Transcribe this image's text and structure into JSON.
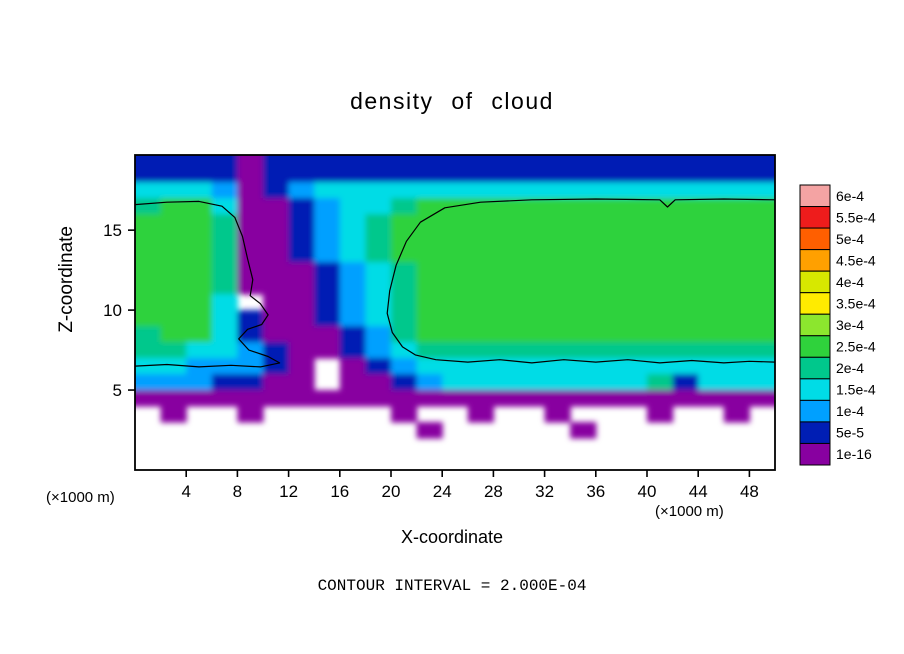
{
  "chart_data": {
    "type": "heatmap",
    "title": "density of cloud",
    "xlabel": "X-coordinate",
    "ylabel": "Z-coordinate",
    "x_unit_left": "(×1000 m)",
    "x_unit_right": "(×1000 m)",
    "contour_note": "CONTOUR INTERVAL = 2.000E-04",
    "contour_level": "2e-4",
    "xlim": [
      0,
      50
    ],
    "ylim": [
      0,
      19.7
    ],
    "x_ticks": [
      4,
      8,
      12,
      16,
      20,
      24,
      28,
      32,
      36,
      40,
      44,
      48
    ],
    "y_ticks": [
      5,
      10,
      15
    ],
    "grid_on": false,
    "legend_position": "right",
    "colorbar": {
      "labels": [
        "6e-4",
        "5.5e-4",
        "5e-4",
        "4.5e-4",
        "4e-4",
        "3.5e-4",
        "3e-4",
        "2.5e-4",
        "2e-4",
        "1.5e-4",
        "1e-4",
        "5e-5",
        "1e-16"
      ],
      "colors": [
        "#f4a3a3",
        "#ee1c1c",
        "#ff5f00",
        "#ffa000",
        "#d7e800",
        "#ffeb00",
        "#8ce62e",
        "#2fd23c",
        "#00c88c",
        "#00dce6",
        "#00a0ff",
        "#001eb4",
        "#8800a0"
      ]
    },
    "grid": {
      "comment": "cloud density field, values in units of 1e-4; 0 = below 1e-16 (white); columns x = 1,3,...,49 (×1000 m); rows top-to-bottom z = 19.5 down to 0.5 (×1000 m)",
      "x0": 1,
      "dx": 2,
      "z_top": 19.5,
      "dz": 1,
      "values": [
        [
          0.7,
          0.7,
          0.7,
          0.7,
          0.2,
          0.7,
          0.7,
          0.7,
          0.7,
          0.7,
          0.7,
          0.7,
          0.7,
          0.7,
          0.7,
          0.7,
          0.7,
          0.7,
          0.7,
          0.7,
          0.7,
          0.7,
          0.7,
          0.7,
          0.7
        ],
        [
          0.7,
          0.7,
          0.7,
          0.7,
          0.2,
          0.7,
          0.7,
          0.7,
          0.7,
          0.7,
          0.7,
          0.7,
          0.7,
          0.7,
          0.7,
          0.7,
          0.7,
          0.7,
          0.7,
          0.7,
          0.7,
          0.7,
          0.7,
          0.7,
          0.7
        ],
        [
          1.7,
          1.7,
          1.7,
          1.2,
          0.2,
          0.7,
          1.2,
          1.7,
          1.7,
          1.7,
          1.7,
          1.7,
          1.7,
          1.7,
          1.7,
          1.7,
          1.7,
          1.7,
          1.7,
          1.7,
          1.7,
          1.7,
          1.7,
          1.7,
          1.7
        ],
        [
          2.2,
          2.7,
          2.7,
          1.7,
          0.2,
          0.2,
          0.7,
          1.2,
          1.7,
          1.7,
          2.2,
          2.7,
          2.7,
          2.7,
          2.7,
          2.7,
          2.7,
          2.7,
          2.7,
          2.7,
          2.7,
          2.7,
          2.7,
          2.7,
          2.7
        ],
        [
          2.7,
          2.7,
          2.7,
          2.2,
          0.2,
          0.2,
          0.7,
          1.2,
          1.7,
          2.2,
          2.7,
          2.7,
          2.7,
          2.7,
          2.7,
          2.7,
          2.7,
          2.7,
          2.7,
          2.7,
          2.7,
          2.7,
          2.7,
          2.7,
          2.7
        ],
        [
          2.7,
          2.7,
          2.7,
          2.2,
          0.2,
          0.2,
          0.7,
          1.2,
          1.7,
          2.2,
          2.7,
          2.7,
          2.7,
          2.7,
          2.7,
          2.7,
          2.7,
          2.7,
          2.7,
          2.7,
          2.7,
          2.7,
          2.7,
          2.7,
          2.7
        ],
        [
          2.7,
          2.7,
          2.7,
          2.2,
          0.2,
          0.2,
          0.7,
          1.2,
          1.7,
          2.2,
          2.7,
          2.7,
          2.7,
          2.7,
          2.7,
          2.7,
          2.7,
          2.7,
          2.7,
          2.7,
          2.7,
          2.7,
          2.7,
          2.7,
          2.7
        ],
        [
          2.7,
          2.7,
          2.7,
          2.2,
          0.2,
          0.2,
          0.2,
          0.7,
          1.2,
          1.7,
          2.2,
          2.7,
          2.7,
          2.7,
          2.7,
          2.7,
          2.7,
          2.7,
          2.7,
          2.7,
          2.7,
          2.7,
          2.7,
          2.7,
          2.7
        ],
        [
          2.7,
          2.7,
          2.7,
          2.2,
          0.2,
          0.2,
          0.2,
          0.7,
          1.2,
          1.7,
          2.2,
          2.7,
          2.7,
          2.7,
          2.7,
          2.7,
          2.7,
          2.7,
          2.7,
          2.7,
          2.7,
          2.7,
          2.7,
          2.7,
          2.7
        ],
        [
          2.7,
          2.7,
          2.7,
          1.7,
          0.0,
          0.2,
          0.2,
          0.7,
          1.2,
          1.7,
          2.2,
          2.7,
          2.7,
          2.7,
          2.7,
          2.7,
          2.7,
          2.7,
          2.7,
          2.7,
          2.7,
          2.7,
          2.7,
          2.7,
          2.7
        ],
        [
          2.7,
          2.7,
          2.7,
          1.7,
          0.7,
          0.2,
          0.2,
          0.7,
          1.2,
          1.7,
          2.2,
          2.7,
          2.7,
          2.7,
          2.7,
          2.7,
          2.7,
          2.7,
          2.7,
          2.7,
          2.7,
          2.7,
          2.7,
          2.7,
          2.7
        ],
        [
          2.2,
          2.7,
          2.7,
          1.7,
          0.7,
          0.2,
          0.2,
          0.2,
          0.7,
          1.2,
          2.2,
          2.7,
          2.7,
          2.7,
          2.7,
          2.7,
          2.7,
          2.7,
          2.7,
          2.7,
          2.7,
          2.7,
          2.7,
          2.7,
          2.7
        ],
        [
          2.2,
          2.2,
          1.7,
          1.7,
          1.2,
          0.7,
          0.2,
          0.2,
          0.7,
          1.2,
          1.7,
          2.2,
          2.2,
          2.2,
          2.2,
          2.2,
          2.2,
          2.2,
          2.2,
          2.2,
          2.2,
          2.2,
          2.2,
          2.2,
          2.2
        ],
        [
          1.7,
          1.7,
          1.2,
          1.2,
          1.2,
          0.7,
          0.2,
          0.0,
          0.2,
          0.7,
          1.2,
          1.7,
          1.7,
          1.7,
          1.7,
          1.7,
          1.7,
          1.7,
          1.7,
          1.7,
          1.7,
          1.7,
          1.7,
          1.7,
          1.7
        ],
        [
          1.2,
          1.2,
          1.2,
          0.7,
          0.7,
          0.2,
          0.2,
          0.0,
          0.2,
          0.2,
          0.7,
          1.2,
          1.7,
          1.7,
          1.7,
          1.7,
          1.7,
          1.7,
          1.7,
          1.7,
          2.2,
          0.7,
          1.7,
          1.7,
          1.7
        ],
        [
          0.2,
          0.2,
          0.2,
          0.2,
          0.2,
          0.2,
          0.2,
          0.2,
          0.2,
          0.2,
          0.2,
          0.2,
          0.2,
          0.2,
          0.2,
          0.2,
          0.2,
          0.2,
          0.2,
          0.2,
          0.2,
          0.2,
          0.2,
          0.2,
          0.2
        ],
        [
          0.0,
          0.2,
          0.0,
          0.0,
          0.2,
          0.0,
          0.0,
          0.0,
          0.0,
          0.0,
          0.2,
          0.0,
          0.0,
          0.2,
          0.0,
          0.0,
          0.2,
          0.0,
          0.0,
          0.0,
          0.2,
          0.0,
          0.0,
          0.2,
          0.0
        ],
        [
          0.0,
          0.0,
          0.0,
          0.0,
          0.0,
          0.0,
          0.0,
          0.0,
          0.0,
          0.0,
          0.0,
          0.2,
          0.0,
          0.0,
          0.0,
          0.0,
          0.0,
          0.2,
          0.0,
          0.0,
          0.0,
          0.0,
          0.0,
          0.0,
          0.0
        ],
        [
          0.0,
          0.0,
          0.0,
          0.0,
          0.0,
          0.0,
          0.0,
          0.0,
          0.0,
          0.0,
          0.0,
          0.0,
          0.0,
          0.0,
          0.0,
          0.0,
          0.0,
          0.0,
          0.0,
          0.0,
          0.0,
          0.0,
          0.0,
          0.0,
          0.0
        ],
        [
          0.0,
          0.0,
          0.0,
          0.0,
          0.0,
          0.0,
          0.0,
          0.0,
          0.0,
          0.0,
          0.0,
          0.0,
          0.0,
          0.0,
          0.0,
          0.0,
          0.0,
          0.0,
          0.0,
          0.0,
          0.0,
          0.0,
          0.0,
          0.0,
          0.0
        ]
      ]
    },
    "contour_lines": [
      [
        [
          0,
          16.6
        ],
        [
          2.5,
          16.75
        ],
        [
          5,
          16.8
        ],
        [
          6.8,
          16.5
        ],
        [
          7.8,
          15.8
        ],
        [
          8.4,
          14.6
        ],
        [
          8.8,
          13.2
        ],
        [
          9.2,
          11.9
        ],
        [
          9,
          10.9
        ],
        [
          9.8,
          10.4
        ],
        [
          10.4,
          9.7
        ],
        [
          9.9,
          9.1
        ],
        [
          8.8,
          8.8
        ],
        [
          8.1,
          8.2
        ],
        [
          8.9,
          7.5
        ],
        [
          10.4,
          7.1
        ],
        [
          11.3,
          6.7
        ],
        [
          9.8,
          6.45
        ],
        [
          7.5,
          6.55
        ],
        [
          5,
          6.45
        ],
        [
          2.5,
          6.6
        ],
        [
          0,
          6.5
        ]
      ],
      [
        [
          50,
          16.9
        ],
        [
          46,
          16.95
        ],
        [
          42.2,
          16.9
        ],
        [
          41.6,
          16.45
        ],
        [
          41,
          16.9
        ],
        [
          36,
          16.95
        ],
        [
          31,
          16.9
        ],
        [
          27,
          16.75
        ],
        [
          24.2,
          16.4
        ],
        [
          22.3,
          15.5
        ],
        [
          21.2,
          14.3
        ],
        [
          20.4,
          12.8
        ],
        [
          19.9,
          11.2
        ],
        [
          19.7,
          9.8
        ],
        [
          20.1,
          8.6
        ],
        [
          20.9,
          7.7
        ],
        [
          21.9,
          7.2
        ],
        [
          23.5,
          6.9
        ],
        [
          26,
          6.75
        ],
        [
          28.5,
          6.9
        ],
        [
          31,
          6.7
        ],
        [
          33.5,
          6.9
        ],
        [
          36,
          6.75
        ],
        [
          38.5,
          6.9
        ],
        [
          41,
          6.7
        ],
        [
          43.5,
          6.85
        ],
        [
          46,
          6.7
        ],
        [
          48,
          6.8
        ],
        [
          50,
          6.75
        ]
      ]
    ]
  }
}
